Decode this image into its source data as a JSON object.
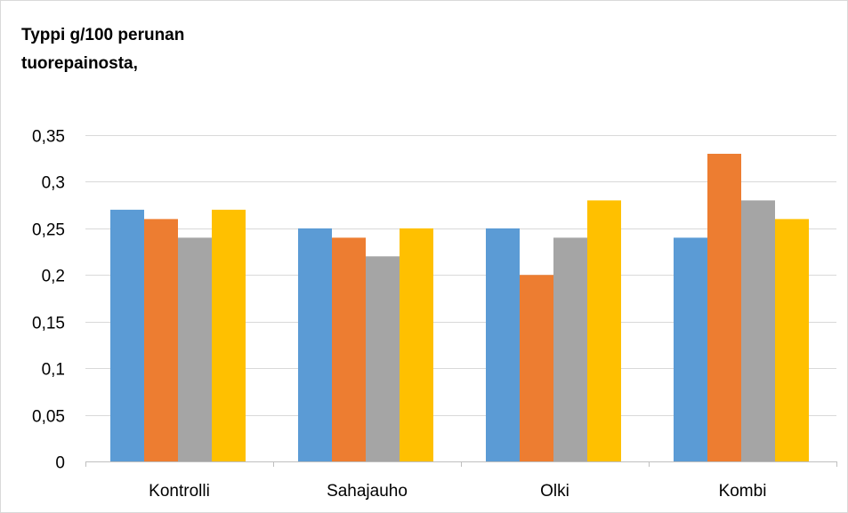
{
  "chart_data": {
    "type": "bar",
    "title": "Typpi g/100 perunan tuorepainosta,",
    "xlabel": "",
    "ylabel": "",
    "categories": [
      "Kontrolli",
      "Sahajauho",
      "Olki",
      "Kombi"
    ],
    "series": [
      {
        "color": "#5b9bd5",
        "values": [
          0.27,
          0.25,
          0.25,
          0.24
        ]
      },
      {
        "color": "#ed7d31",
        "values": [
          0.26,
          0.24,
          0.2,
          0.33
        ]
      },
      {
        "color": "#a5a5a5",
        "values": [
          0.24,
          0.22,
          0.24,
          0.28
        ]
      },
      {
        "color": "#ffc000",
        "values": [
          0.27,
          0.25,
          0.28,
          0.26
        ]
      }
    ],
    "ylim": [
      0,
      0.35
    ],
    "yticks": [
      0,
      0.05,
      0.1,
      0.15,
      0.2,
      0.25,
      0.3,
      0.35
    ],
    "ytick_labels": [
      "0",
      "0,05",
      "0,1",
      "0,15",
      "0,2",
      "0,25",
      "0,3",
      "0,35"
    ],
    "grid": true,
    "legend": "none",
    "gridline_color": "#d9d9d9",
    "axis_color": "#bfbfbf"
  }
}
